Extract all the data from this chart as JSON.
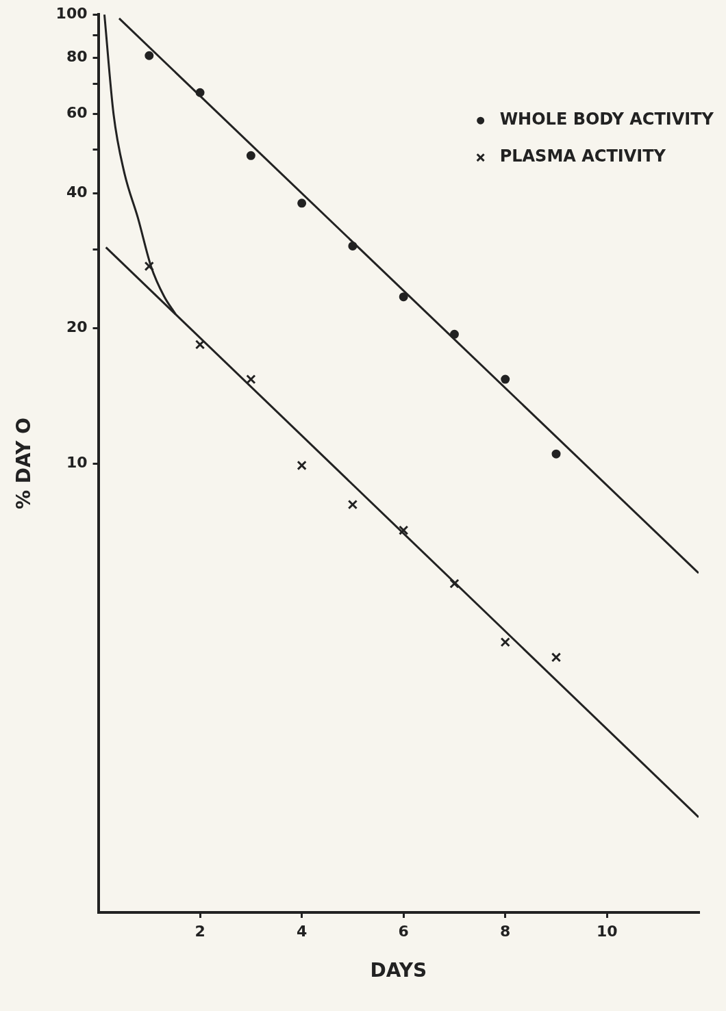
{
  "chart_data": {
    "type": "scatter",
    "xlabel": "DAYS",
    "ylabel": "% DAY O",
    "xlim": [
      0,
      11.8
    ],
    "xticks": [
      2,
      4,
      6,
      8,
      10
    ],
    "ylim": [
      1,
      100
    ],
    "yticks": [
      10,
      20,
      {
        "value": 30,
        "label": null
      },
      40,
      {
        "value": 50,
        "label": null
      },
      60,
      {
        "value": 70,
        "label": null
      },
      80,
      {
        "value": 90,
        "label": null
      },
      100
    ],
    "log": "y",
    "grid": false,
    "legend": "top right",
    "series": [
      {
        "name": "WHOLE BODY ACTIVITY",
        "color": "#222222",
        "marker": "circle",
        "x": [
          1,
          2,
          3,
          4,
          5,
          6,
          7,
          8,
          9
        ],
        "values": [
          81,
          67,
          48.5,
          38,
          30.5,
          23.5,
          19.4,
          15.4,
          10.5
        ]
      },
      {
        "name": "PLASMA ACTIVITY",
        "color": "#222222",
        "marker": "cross",
        "x": [
          1,
          2,
          3,
          4,
          5,
          6,
          7,
          8,
          9
        ],
        "values": [
          27.5,
          18.4,
          15.4,
          9.9,
          8.1,
          7.1,
          5.4,
          4.0,
          3.7
        ]
      },
      {
        "type": "line",
        "color": "#222222",
        "marker": "none",
        "x": [
          0.41,
          11.8
        ],
        "values": [
          98,
          5.7
        ]
      },
      {
        "type": "line",
        "color": "#222222",
        "marker": "none",
        "x": [
          0.15,
          11.8
        ],
        "values": [
          30.3,
          1.63
        ]
      },
      {
        "type": "line",
        "color": "#222222",
        "marker": "none",
        "x": [
          0.12,
          0.3,
          0.51,
          0.78,
          1.04,
          1.29,
          1.52
        ],
        "values": [
          100,
          60,
          44.5,
          35.2,
          27.4,
          23.6,
          21.5
        ]
      }
    ]
  }
}
